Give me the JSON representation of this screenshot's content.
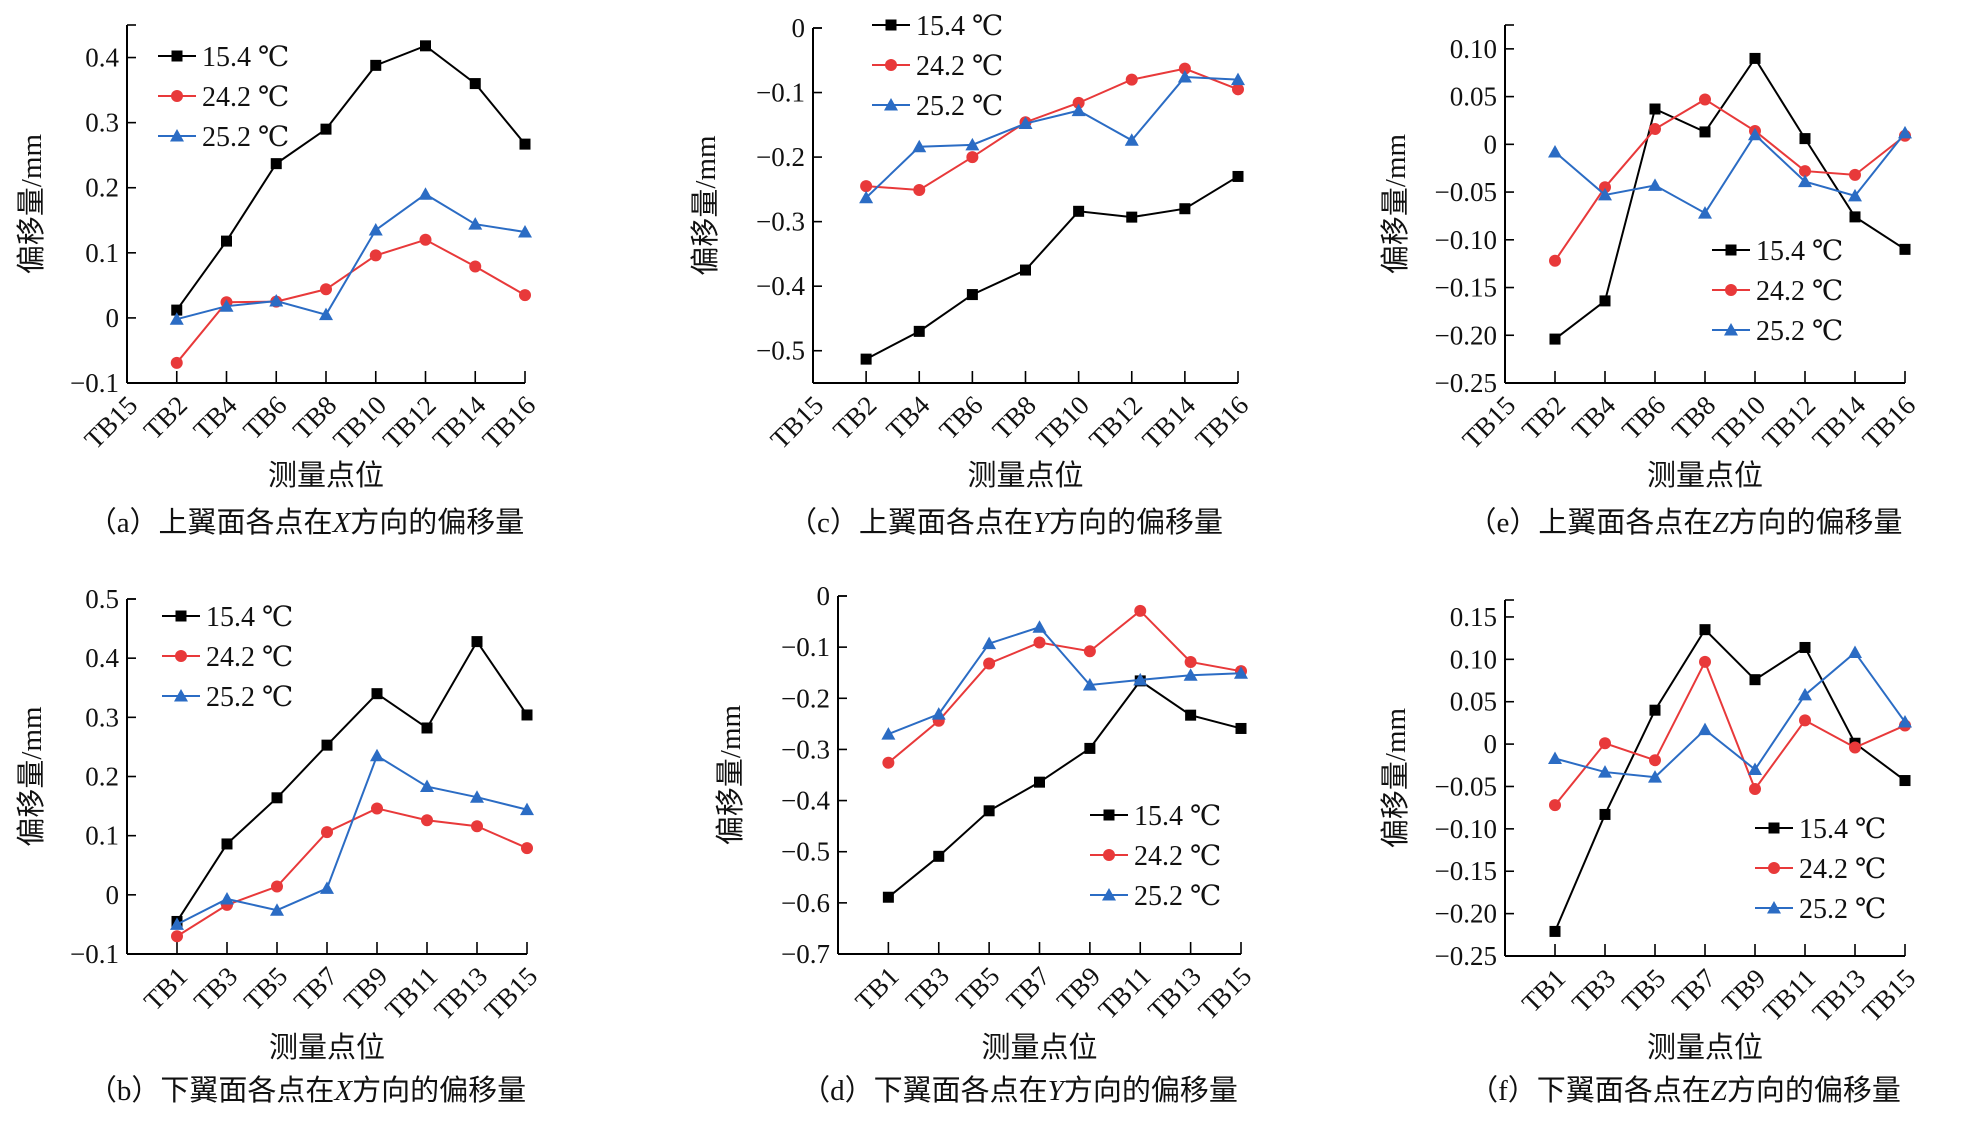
{
  "colors": {
    "s1": "#000000",
    "s2": "#e8393a",
    "s3": "#2b6cc4"
  },
  "legend": [
    "15.4 ℃",
    "24.2 ℃",
    "25.2 ℃"
  ],
  "chart_data": [
    {
      "type": "line",
      "id": "a",
      "title": "（a）上翼面各点在X方向的偏移量",
      "caption_prefix": "（a）上翼面各点在",
      "caption_axis": "X",
      "caption_suffix": "方向的偏移量",
      "xlabel": "测量点位",
      "ylabel": "偏移量/mm",
      "categories": [
        "TB15",
        "TB2",
        "TB4",
        "TB6",
        "TB8",
        "TB10",
        "TB12",
        "TB14",
        "TB16"
      ],
      "ylim": [
        -0.1,
        0.45
      ],
      "yticks": [
        -0.1,
        0,
        0.1,
        0.2,
        0.3,
        0.4
      ],
      "ytick_labels": [
        "−0.1",
        "0",
        "0.1",
        "0.2",
        "0.3",
        "0.4"
      ],
      "legend_position": "top-left",
      "series": [
        {
          "name": "15.4 ℃",
          "values": [
            null,
            0.012,
            0.118,
            0.237,
            0.29,
            0.388,
            0.418,
            0.36,
            0.267
          ]
        },
        {
          "name": "24.2 ℃",
          "values": [
            null,
            -0.069,
            0.024,
            0.025,
            0.044,
            0.096,
            0.12,
            0.079,
            0.035
          ]
        },
        {
          "name": "25.2 ℃",
          "values": [
            null,
            -0.002,
            0.018,
            0.026,
            0.005,
            0.135,
            0.19,
            0.144,
            0.132
          ]
        }
      ]
    },
    {
      "type": "line",
      "id": "c",
      "title": "（c）上翼面各点在Y方向的偏移量",
      "caption_prefix": "（c）上翼面各点在",
      "caption_axis": "Y",
      "caption_suffix": "方向的偏移量",
      "xlabel": "测量点位",
      "ylabel": "偏移量/mm",
      "categories": [
        "TB15",
        "TB2",
        "TB4",
        "TB6",
        "TB8",
        "TB10",
        "TB12",
        "TB14",
        "TB16"
      ],
      "ylim": [
        -0.55,
        0
      ],
      "yticks": [
        -0.5,
        -0.4,
        -0.3,
        -0.2,
        -0.1,
        0
      ],
      "ytick_labels": [
        "−0.5",
        "−0.4",
        "−0.3",
        "−0.2",
        "−0.1",
        "0"
      ],
      "legend_position": "top-left",
      "series": [
        {
          "name": "15.4 ℃",
          "values": [
            null,
            -0.513,
            -0.47,
            -0.413,
            -0.375,
            -0.284,
            -0.293,
            -0.28,
            -0.23
          ]
        },
        {
          "name": "24.2 ℃",
          "values": [
            null,
            -0.245,
            -0.251,
            -0.2,
            -0.146,
            -0.116,
            -0.08,
            -0.063,
            -0.095
          ]
        },
        {
          "name": "25.2 ℃",
          "values": [
            null,
            -0.263,
            -0.184,
            -0.181,
            -0.148,
            -0.128,
            -0.174,
            -0.076,
            -0.08
          ]
        }
      ]
    },
    {
      "type": "line",
      "id": "e",
      "title": "（e）上翼面各点在Z方向的偏移量",
      "caption_prefix": "（e）上翼面各点在",
      "caption_axis": "Z",
      "caption_suffix": "方向的偏移量",
      "xlabel": "测量点位",
      "ylabel": "偏移量/mm",
      "categories": [
        "TB15",
        "TB2",
        "TB4",
        "TB6",
        "TB8",
        "TB10",
        "TB12",
        "TB14",
        "TB16"
      ],
      "ylim": [
        -0.25,
        0.125
      ],
      "yticks": [
        -0.25,
        -0.2,
        -0.15,
        -0.1,
        -0.05,
        0,
        0.05,
        0.1
      ],
      "ytick_labels": [
        "−0.25",
        "−0.20",
        "−0.15",
        "−0.10",
        "−0.05",
        "0",
        "0.05",
        "0.10"
      ],
      "legend_position": "bottom-right",
      "series": [
        {
          "name": "15.4 ℃",
          "values": [
            null,
            -0.204,
            -0.164,
            0.037,
            0.013,
            0.09,
            0.006,
            -0.076,
            -0.11
          ]
        },
        {
          "name": "24.2 ℃",
          "values": [
            null,
            -0.122,
            -0.045,
            0.016,
            0.047,
            0.014,
            -0.028,
            -0.032,
            0.009
          ]
        },
        {
          "name": "25.2 ℃",
          "values": [
            null,
            -0.008,
            -0.053,
            -0.043,
            -0.072,
            0.01,
            -0.039,
            -0.054,
            0.012
          ]
        }
      ]
    },
    {
      "type": "line",
      "id": "b",
      "title": "（b）下翼面各点在X方向的偏移量",
      "caption_prefix": "（b）下翼面各点在",
      "caption_axis": "X",
      "caption_suffix": "方向的偏移量",
      "xlabel": "测量点位",
      "ylabel": "偏移量/mm",
      "categories": [
        "TB1",
        "TB3",
        "TB5",
        "TB7",
        "TB9",
        "TB11",
        "TB13",
        "TB15"
      ],
      "ylim": [
        -0.1,
        0.5
      ],
      "yticks": [
        -0.1,
        0,
        0.1,
        0.2,
        0.3,
        0.4,
        0.5
      ],
      "ytick_labels": [
        "−0.1",
        "0",
        "0.1",
        "0.2",
        "0.3",
        "0.4",
        "0.5"
      ],
      "legend_position": "top-left",
      "series": [
        {
          "name": "15.4 ℃",
          "values": [
            -0.045,
            0.086,
            0.164,
            0.253,
            0.34,
            0.282,
            0.428,
            0.304
          ]
        },
        {
          "name": "24.2 ℃",
          "values": [
            -0.07,
            -0.017,
            0.014,
            0.106,
            0.146,
            0.126,
            0.116,
            0.079
          ]
        },
        {
          "name": "25.2 ℃",
          "values": [
            -0.05,
            -0.007,
            -0.026,
            0.011,
            0.235,
            0.183,
            0.165,
            0.144
          ]
        }
      ]
    },
    {
      "type": "line",
      "id": "d",
      "title": "（d）下翼面各点在Y方向的偏移量",
      "caption_prefix": "（d）下翼面各点在",
      "caption_axis": "Y",
      "caption_suffix": "方向的偏移量",
      "xlabel": "测量点位",
      "ylabel": "偏移量/mm",
      "categories": [
        "TB1",
        "TB3",
        "TB5",
        "TB7",
        "TB9",
        "TB11",
        "TB13",
        "TB15"
      ],
      "ylim": [
        -0.7,
        0
      ],
      "yticks": [
        -0.7,
        -0.6,
        -0.5,
        -0.4,
        -0.3,
        -0.2,
        -0.1,
        0
      ],
      "ytick_labels": [
        "−0.7",
        "−0.6",
        "−0.5",
        "−0.4",
        "−0.3",
        "−0.2",
        "−0.1",
        "0"
      ],
      "legend_position": "bottom-right",
      "series": [
        {
          "name": "15.4 ℃",
          "values": [
            -0.589,
            -0.509,
            -0.42,
            -0.364,
            -0.298,
            -0.166,
            -0.233,
            -0.259
          ]
        },
        {
          "name": "24.2 ℃",
          "values": [
            -0.326,
            -0.244,
            -0.132,
            -0.091,
            -0.108,
            -0.029,
            -0.129,
            -0.147
          ]
        },
        {
          "name": "25.2 ℃",
          "values": [
            -0.27,
            -0.231,
            -0.093,
            -0.061,
            -0.174,
            -0.164,
            -0.155,
            -0.151
          ]
        }
      ]
    },
    {
      "type": "line",
      "id": "f",
      "title": "（f）下翼面各点在Z方向的偏移量",
      "caption_prefix": "（f）下翼面各点在",
      "caption_axis": "Z",
      "caption_suffix": "方向的偏移量",
      "xlabel": "测量点位",
      "ylabel": "偏移量/mm",
      "categories": [
        "TB1",
        "TB3",
        "TB5",
        "TB7",
        "TB9",
        "TB11",
        "TB13",
        "TB15"
      ],
      "ylim": [
        -0.25,
        0.17
      ],
      "yticks": [
        -0.25,
        -0.2,
        -0.15,
        -0.1,
        -0.05,
        0,
        0.05,
        0.1,
        0.15
      ],
      "ytick_labels": [
        "−0.25",
        "−0.20",
        "−0.15",
        "−0.10",
        "−0.05",
        "0",
        "0.05",
        "0.10",
        "0.15"
      ],
      "legend_position": "bottom-right",
      "series": [
        {
          "name": "15.4 ℃",
          "values": [
            -0.221,
            -0.083,
            0.04,
            0.135,
            0.076,
            0.114,
            0.001,
            -0.043
          ]
        },
        {
          "name": "24.2 ℃",
          "values": [
            -0.072,
            0.001,
            -0.019,
            0.097,
            -0.053,
            0.028,
            -0.004,
            0.022
          ]
        },
        {
          "name": "25.2 ℃",
          "values": [
            -0.017,
            -0.033,
            -0.039,
            0.017,
            -0.03,
            0.058,
            0.108,
            0.026
          ]
        }
      ]
    }
  ]
}
